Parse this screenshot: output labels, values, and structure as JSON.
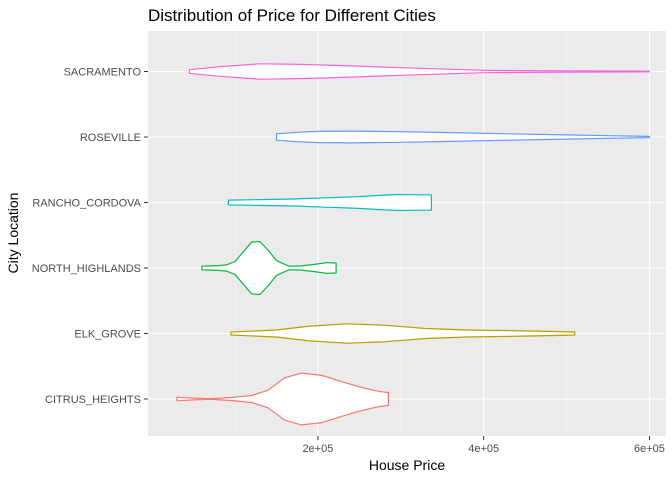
{
  "chart_data": {
    "type": "violin",
    "orientation": "horizontal",
    "title": "Distribution of Price for Different Cities",
    "xlabel": "House Price",
    "ylabel": "City Location",
    "xlim": [
      -5000,
      620000
    ],
    "x_ticks": [
      200000,
      400000,
      600000
    ],
    "x_tick_labels": [
      "2e+05",
      "4e+05",
      "6e+05"
    ],
    "grid": true,
    "legend": "none",
    "categories": [
      "CITRUS_HEIGHTS",
      "ELK_GROVE",
      "NORTH_HIGHLANDS",
      "RANCHO_CORDOVA",
      "ROSEVILLE",
      "SACRAMENTO"
    ],
    "series": [
      {
        "category": "CITRUS_HEIGHTS",
        "color": "#F8766D",
        "range": [
          30000,
          285000
        ],
        "density": [
          [
            30000,
            0.06
          ],
          [
            50000,
            0.03
          ],
          [
            70000,
            0.01
          ],
          [
            95000,
            0.05
          ],
          [
            120000,
            0.12
          ],
          [
            140000,
            0.3
          ],
          [
            160000,
            0.72
          ],
          [
            180000,
            0.88
          ],
          [
            205000,
            0.8
          ],
          [
            225000,
            0.62
          ],
          [
            245000,
            0.45
          ],
          [
            262000,
            0.33
          ],
          [
            275000,
            0.25
          ],
          [
            285000,
            0.22
          ]
        ]
      },
      {
        "category": "ELK_GROVE",
        "color": "#B79F00",
        "range": [
          95000,
          510000
        ],
        "density": [
          [
            95000,
            0.05
          ],
          [
            150000,
            0.12
          ],
          [
            190000,
            0.25
          ],
          [
            235000,
            0.33
          ],
          [
            280000,
            0.28
          ],
          [
            330000,
            0.17
          ],
          [
            380000,
            0.12
          ],
          [
            430000,
            0.1
          ],
          [
            480000,
            0.07
          ],
          [
            510000,
            0.05
          ]
        ]
      },
      {
        "category": "NORTH_HIGHLANDS",
        "color": "#00BA38",
        "range": [
          60000,
          222000
        ],
        "density": [
          [
            60000,
            0.06
          ],
          [
            70000,
            0.07
          ],
          [
            80000,
            0.08
          ],
          [
            90000,
            0.11
          ],
          [
            100000,
            0.22
          ],
          [
            110000,
            0.55
          ],
          [
            120000,
            0.88
          ],
          [
            130000,
            0.9
          ],
          [
            140000,
            0.6
          ],
          [
            150000,
            0.25
          ],
          [
            165000,
            0.06
          ],
          [
            180000,
            0.07
          ],
          [
            195000,
            0.12
          ],
          [
            210000,
            0.18
          ],
          [
            222000,
            0.17
          ]
        ]
      },
      {
        "category": "RANCHO_CORDOVA",
        "color": "#00BFC4",
        "range": [
          92000,
          337000
        ],
        "density": [
          [
            92000,
            0.08
          ],
          [
            130000,
            0.1
          ],
          [
            170000,
            0.12
          ],
          [
            210000,
            0.16
          ],
          [
            250000,
            0.2
          ],
          [
            280000,
            0.25
          ],
          [
            300000,
            0.27
          ],
          [
            320000,
            0.26
          ],
          [
            337000,
            0.26
          ]
        ]
      },
      {
        "category": "ROSEVILLE",
        "color": "#619CFF",
        "range": [
          150000,
          600000
        ],
        "density": [
          [
            150000,
            0.11
          ],
          [
            175000,
            0.16
          ],
          [
            200000,
            0.19
          ],
          [
            240000,
            0.2
          ],
          [
            300000,
            0.18
          ],
          [
            360000,
            0.15
          ],
          [
            430000,
            0.11
          ],
          [
            500000,
            0.07
          ],
          [
            560000,
            0.04
          ],
          [
            600000,
            0.02
          ]
        ]
      },
      {
        "category": "SACRAMENTO",
        "color": "#F564E3",
        "range": [
          45000,
          600000
        ],
        "density": [
          [
            45000,
            0.06
          ],
          [
            80000,
            0.16
          ],
          [
            130000,
            0.26
          ],
          [
            180000,
            0.24
          ],
          [
            230000,
            0.2
          ],
          [
            300000,
            0.13
          ],
          [
            400000,
            0.04
          ],
          [
            500000,
            0.02
          ],
          [
            600000,
            0.01
          ]
        ]
      }
    ]
  }
}
